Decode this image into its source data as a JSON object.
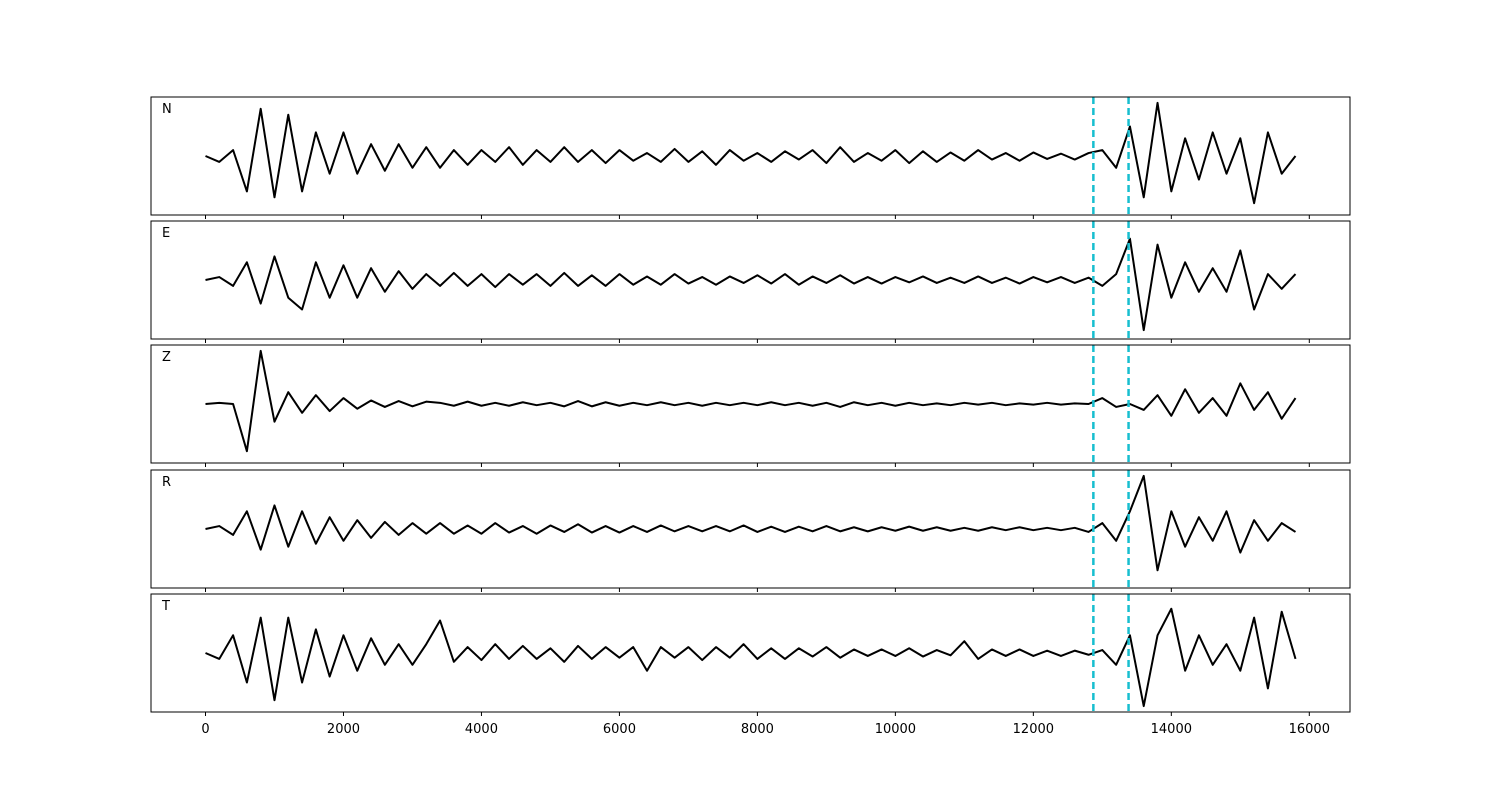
{
  "chart_data": {
    "type": "line",
    "layout": "stacked",
    "x": [
      0,
      200,
      400,
      600,
      800,
      1000,
      1200,
      1400,
      1600,
      1800,
      2000,
      2200,
      2400,
      2600,
      2800,
      3000,
      3200,
      3400,
      3600,
      3800,
      4000,
      4200,
      4400,
      4600,
      4800,
      5000,
      5200,
      5400,
      5600,
      5800,
      6000,
      6200,
      6400,
      6600,
      6800,
      7000,
      7200,
      7400,
      7600,
      7800,
      8000,
      8200,
      8400,
      8600,
      8800,
      9000,
      9200,
      9400,
      9600,
      9800,
      10000,
      10200,
      10400,
      10600,
      10800,
      11000,
      11200,
      11400,
      11600,
      11800,
      12000,
      12200,
      12400,
      12600,
      12800,
      13000,
      13200,
      13400,
      13600,
      13800,
      14000,
      14200,
      14400,
      14600,
      14800,
      15000,
      15200,
      15400,
      15600,
      15800
    ],
    "xlim": [
      -790,
      16590
    ],
    "xticks": [
      0,
      2000,
      4000,
      6000,
      8000,
      10000,
      12000,
      14000,
      16000
    ],
    "ylim": [
      -1,
      1
    ],
    "vlines": [
      12870,
      13380
    ],
    "vline_color": "#17becf",
    "series": [
      {
        "name": "N",
        "color": "#000000",
        "values": [
          0.0,
          -0.1,
          0.1,
          -0.6,
          0.8,
          -0.7,
          0.7,
          -0.6,
          0.4,
          -0.3,
          0.4,
          -0.3,
          0.2,
          -0.25,
          0.2,
          -0.2,
          0.15,
          -0.2,
          0.1,
          -0.15,
          0.1,
          -0.1,
          0.15,
          -0.15,
          0.1,
          -0.1,
          0.15,
          -0.1,
          0.1,
          -0.12,
          0.1,
          -0.08,
          0.05,
          -0.1,
          0.12,
          -0.1,
          0.08,
          -0.15,
          0.1,
          -0.08,
          0.05,
          -0.1,
          0.08,
          -0.06,
          0.1,
          -0.12,
          0.15,
          -0.1,
          0.05,
          -0.08,
          0.1,
          -0.12,
          0.08,
          -0.1,
          0.06,
          -0.08,
          0.1,
          -0.06,
          0.05,
          -0.08,
          0.06,
          -0.05,
          0.04,
          -0.06,
          0.05,
          0.1,
          -0.2,
          0.5,
          -0.7,
          0.9,
          -0.6,
          0.3,
          -0.4,
          0.4,
          -0.3,
          0.3,
          -0.8,
          0.4,
          -0.3,
          0.0
        ]
      },
      {
        "name": "E",
        "color": "#000000",
        "values": [
          0.0,
          0.05,
          -0.1,
          0.3,
          -0.4,
          0.4,
          -0.3,
          -0.5,
          0.3,
          -0.3,
          0.25,
          -0.3,
          0.2,
          -0.2,
          0.15,
          -0.15,
          0.1,
          -0.1,
          0.12,
          -0.1,
          0.1,
          -0.12,
          0.1,
          -0.08,
          0.1,
          -0.1,
          0.12,
          -0.1,
          0.08,
          -0.1,
          0.1,
          -0.08,
          0.06,
          -0.08,
          0.1,
          -0.06,
          0.05,
          -0.08,
          0.06,
          -0.05,
          0.08,
          -0.06,
          0.1,
          -0.08,
          0.06,
          -0.05,
          0.08,
          -0.06,
          0.05,
          -0.06,
          0.05,
          -0.04,
          0.06,
          -0.05,
          0.04,
          -0.05,
          0.06,
          -0.05,
          0.04,
          -0.06,
          0.05,
          -0.04,
          0.05,
          -0.05,
          0.04,
          -0.1,
          0.1,
          0.7,
          -0.85,
          0.6,
          -0.3,
          0.3,
          -0.2,
          0.2,
          -0.2,
          0.5,
          -0.5,
          0.1,
          -0.15,
          0.1
        ]
      },
      {
        "name": "Z",
        "color": "#000000",
        "values": [
          0.0,
          0.02,
          0.0,
          -0.8,
          0.9,
          -0.3,
          0.2,
          -0.15,
          0.15,
          -0.12,
          0.1,
          -0.08,
          0.06,
          -0.05,
          0.05,
          -0.04,
          0.04,
          0.02,
          -0.03,
          0.04,
          -0.03,
          0.02,
          -0.03,
          0.03,
          -0.02,
          0.02,
          -0.04,
          0.05,
          -0.04,
          0.03,
          -0.03,
          0.02,
          -0.02,
          0.03,
          -0.02,
          0.02,
          -0.03,
          0.02,
          -0.02,
          0.02,
          -0.02,
          0.03,
          -0.02,
          0.02,
          -0.03,
          0.02,
          -0.05,
          0.03,
          -0.02,
          0.02,
          -0.03,
          0.02,
          -0.02,
          0.01,
          -0.02,
          0.02,
          -0.01,
          0.02,
          -0.02,
          0.01,
          -0.01,
          0.02,
          -0.01,
          0.01,
          0.0,
          0.1,
          -0.05,
          0.0,
          -0.1,
          0.15,
          -0.2,
          0.25,
          -0.15,
          0.1,
          -0.2,
          0.35,
          -0.1,
          0.2,
          -0.25,
          0.1
        ]
      },
      {
        "name": "R",
        "color": "#000000",
        "values": [
          0.0,
          0.05,
          -0.1,
          0.3,
          -0.35,
          0.4,
          -0.3,
          0.3,
          -0.25,
          0.2,
          -0.2,
          0.15,
          -0.15,
          0.12,
          -0.1,
          0.1,
          -0.08,
          0.1,
          -0.08,
          0.06,
          -0.08,
          0.1,
          -0.06,
          0.05,
          -0.08,
          0.06,
          -0.05,
          0.08,
          -0.06,
          0.05,
          -0.06,
          0.05,
          -0.05,
          0.06,
          -0.04,
          0.05,
          -0.04,
          0.05,
          -0.04,
          0.06,
          -0.05,
          0.04,
          -0.05,
          0.04,
          -0.04,
          0.05,
          -0.04,
          0.03,
          -0.04,
          0.03,
          -0.03,
          0.04,
          -0.03,
          0.03,
          -0.03,
          0.02,
          -0.03,
          0.03,
          -0.02,
          0.03,
          -0.02,
          0.02,
          -0.02,
          0.02,
          -0.05,
          0.1,
          -0.2,
          0.3,
          0.9,
          -0.7,
          0.3,
          -0.3,
          0.2,
          -0.2,
          0.3,
          -0.4,
          0.15,
          -0.2,
          0.1,
          -0.05
        ]
      },
      {
        "name": "T",
        "color": "#000000",
        "values": [
          0.0,
          -0.1,
          0.3,
          -0.5,
          0.6,
          -0.8,
          0.6,
          -0.5,
          0.4,
          -0.4,
          0.3,
          -0.3,
          0.25,
          -0.2,
          0.15,
          -0.2,
          0.15,
          0.55,
          -0.15,
          0.1,
          -0.12,
          0.15,
          -0.1,
          0.12,
          -0.1,
          0.08,
          -0.15,
          0.12,
          -0.1,
          0.1,
          -0.08,
          0.1,
          -0.3,
          0.1,
          -0.08,
          0.1,
          -0.12,
          0.1,
          -0.08,
          0.15,
          -0.1,
          0.08,
          -0.1,
          0.08,
          -0.06,
          0.1,
          -0.08,
          0.06,
          -0.05,
          0.06,
          -0.05,
          0.08,
          -0.06,
          0.05,
          -0.04,
          0.2,
          -0.1,
          0.06,
          -0.05,
          0.06,
          -0.05,
          0.04,
          -0.05,
          0.04,
          -0.03,
          0.05,
          -0.2,
          0.3,
          -0.9,
          0.3,
          0.75,
          -0.3,
          0.3,
          -0.2,
          0.15,
          -0.3,
          0.6,
          -0.6,
          0.7,
          -0.1
        ]
      }
    ]
  }
}
